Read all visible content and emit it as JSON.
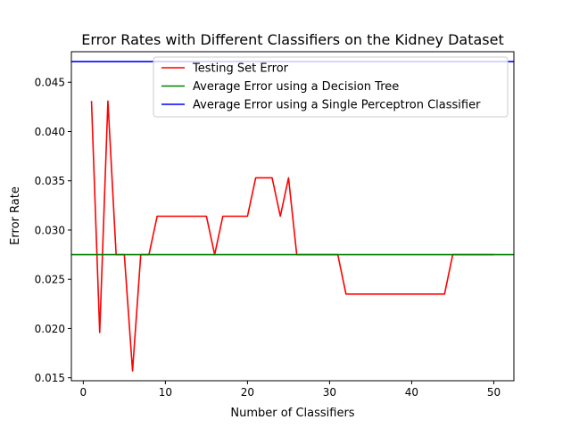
{
  "chart_data": {
    "type": "line",
    "title": "Error Rates with Different Classifiers on the Kidney Dataset",
    "xlabel": "Number of Classifiers",
    "ylabel": "Error Rate",
    "xlim": [
      -1.45,
      52.45
    ],
    "ylim": [
      0.0147,
      0.0481
    ],
    "xticks": [
      0,
      10,
      20,
      30,
      40,
      50
    ],
    "xtick_labels": [
      "0",
      "10",
      "20",
      "30",
      "40",
      "50"
    ],
    "yticks": [
      0.015,
      0.02,
      0.025,
      0.03,
      0.035,
      0.04,
      0.045
    ],
    "ytick_labels": [
      "0.015",
      "0.020",
      "0.025",
      "0.030",
      "0.035",
      "0.040",
      "0.045"
    ],
    "grid": false,
    "legend_position": "top-right",
    "series": [
      {
        "name": "Testing Set Error",
        "color": "#ff0000",
        "kind": "line",
        "x": [
          1,
          2,
          3,
          4,
          5,
          6,
          7,
          8,
          9,
          10,
          11,
          12,
          13,
          14,
          15,
          16,
          17,
          18,
          19,
          20,
          21,
          22,
          23,
          24,
          25,
          26,
          27,
          28,
          29,
          30,
          31,
          32,
          33,
          34,
          35,
          36,
          37,
          38,
          39,
          40,
          41,
          42,
          43,
          44,
          45,
          46,
          47,
          48,
          49,
          50
        ],
        "y": [
          0.0431,
          0.0196,
          0.0431,
          0.0275,
          0.0275,
          0.0157,
          0.0275,
          0.0275,
          0.0314,
          0.0314,
          0.0314,
          0.0314,
          0.0314,
          0.0314,
          0.0314,
          0.0275,
          0.0314,
          0.0314,
          0.0314,
          0.0314,
          0.0353,
          0.0353,
          0.0353,
          0.0314,
          0.0353,
          0.0275,
          0.0275,
          0.0275,
          0.0275,
          0.0275,
          0.0275,
          0.0235,
          0.0235,
          0.0235,
          0.0235,
          0.0235,
          0.0235,
          0.0235,
          0.0235,
          0.0235,
          0.0235,
          0.0235,
          0.0235,
          0.0235,
          0.0275,
          0.0275,
          0.0275,
          0.0275,
          0.0275,
          0.0275
        ]
      },
      {
        "name": "Average Error using a Decision Tree",
        "color": "#008000",
        "kind": "hline",
        "y": 0.0275
      },
      {
        "name": "Average Error using a Single Perceptron Classifier",
        "color": "#0000ff",
        "kind": "hline",
        "y": 0.0471
      }
    ]
  }
}
